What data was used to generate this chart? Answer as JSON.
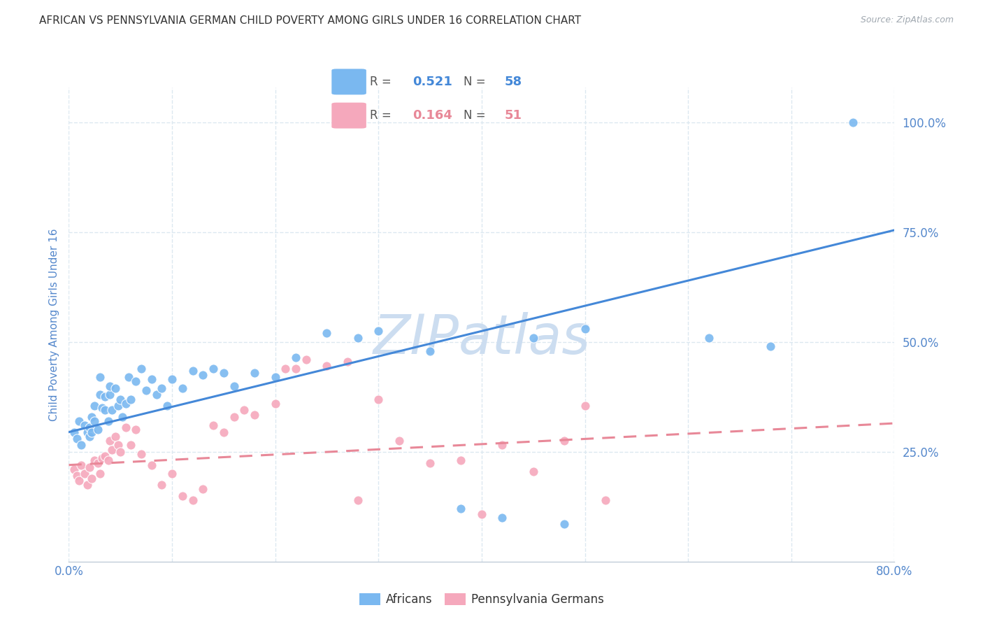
{
  "title": "AFRICAN VS PENNSYLVANIA GERMAN CHILD POVERTY AMONG GIRLS UNDER 16 CORRELATION CHART",
  "source": "Source: ZipAtlas.com",
  "ylabel": "Child Poverty Among Girls Under 16",
  "x_min": 0.0,
  "x_max": 0.8,
  "y_min": 0.0,
  "y_max": 1.08,
  "x_ticks": [
    0.0,
    0.1,
    0.2,
    0.3,
    0.4,
    0.5,
    0.6,
    0.7,
    0.8
  ],
  "y_ticks": [
    0.25,
    0.5,
    0.75,
    1.0
  ],
  "y_tick_labels": [
    "25.0%",
    "50.0%",
    "75.0%",
    "100.0%"
  ],
  "africans_R": "0.521",
  "africans_N": "58",
  "pagermans_R": "0.164",
  "pagermans_N": "51",
  "blue_color": "#7ab8f0",
  "pink_color": "#f5a8bc",
  "blue_line_color": "#4488d8",
  "pink_line_color": "#e88898",
  "watermark_color": "#ccddf0",
  "grid_color": "#dce8f0",
  "title_color": "#333333",
  "tick_label_color": "#5588cc",
  "background_color": "#ffffff",
  "africans_x": [
    0.005,
    0.008,
    0.01,
    0.012,
    0.015,
    0.018,
    0.02,
    0.02,
    0.022,
    0.022,
    0.025,
    0.025,
    0.028,
    0.03,
    0.03,
    0.032,
    0.035,
    0.035,
    0.038,
    0.04,
    0.04,
    0.042,
    0.045,
    0.048,
    0.05,
    0.052,
    0.055,
    0.058,
    0.06,
    0.065,
    0.07,
    0.075,
    0.08,
    0.085,
    0.09,
    0.095,
    0.1,
    0.11,
    0.12,
    0.13,
    0.14,
    0.15,
    0.16,
    0.18,
    0.2,
    0.22,
    0.25,
    0.28,
    0.3,
    0.35,
    0.38,
    0.42,
    0.45,
    0.48,
    0.5,
    0.62,
    0.68,
    0.76
  ],
  "africans_y": [
    0.295,
    0.28,
    0.32,
    0.265,
    0.31,
    0.295,
    0.305,
    0.285,
    0.295,
    0.33,
    0.32,
    0.355,
    0.3,
    0.38,
    0.42,
    0.35,
    0.345,
    0.375,
    0.32,
    0.38,
    0.4,
    0.345,
    0.395,
    0.355,
    0.37,
    0.33,
    0.36,
    0.42,
    0.37,
    0.41,
    0.44,
    0.39,
    0.415,
    0.38,
    0.395,
    0.355,
    0.415,
    0.395,
    0.435,
    0.425,
    0.44,
    0.43,
    0.4,
    0.43,
    0.42,
    0.465,
    0.52,
    0.51,
    0.525,
    0.48,
    0.12,
    0.1,
    0.51,
    0.085,
    0.53,
    0.51,
    0.49,
    1.0
  ],
  "pagermans_x": [
    0.005,
    0.008,
    0.01,
    0.012,
    0.015,
    0.018,
    0.02,
    0.022,
    0.025,
    0.028,
    0.03,
    0.032,
    0.035,
    0.038,
    0.04,
    0.042,
    0.045,
    0.048,
    0.05,
    0.055,
    0.06,
    0.065,
    0.07,
    0.08,
    0.09,
    0.1,
    0.11,
    0.12,
    0.13,
    0.14,
    0.15,
    0.16,
    0.17,
    0.18,
    0.2,
    0.21,
    0.22,
    0.23,
    0.25,
    0.27,
    0.28,
    0.3,
    0.32,
    0.35,
    0.38,
    0.4,
    0.42,
    0.45,
    0.48,
    0.5,
    0.52
  ],
  "pagermans_y": [
    0.21,
    0.195,
    0.185,
    0.22,
    0.2,
    0.175,
    0.215,
    0.19,
    0.23,
    0.225,
    0.2,
    0.235,
    0.24,
    0.23,
    0.275,
    0.255,
    0.285,
    0.265,
    0.25,
    0.305,
    0.265,
    0.3,
    0.245,
    0.22,
    0.175,
    0.2,
    0.15,
    0.14,
    0.165,
    0.31,
    0.295,
    0.33,
    0.345,
    0.335,
    0.36,
    0.44,
    0.44,
    0.46,
    0.445,
    0.455,
    0.14,
    0.37,
    0.275,
    0.225,
    0.23,
    0.108,
    0.265,
    0.205,
    0.275,
    0.355,
    0.14
  ],
  "blue_line_x0": 0.0,
  "blue_line_y0": 0.295,
  "blue_line_x1": 0.8,
  "blue_line_y1": 0.755,
  "pink_line_x0": 0.0,
  "pink_line_y0": 0.22,
  "pink_line_x1": 0.8,
  "pink_line_y1": 0.315
}
